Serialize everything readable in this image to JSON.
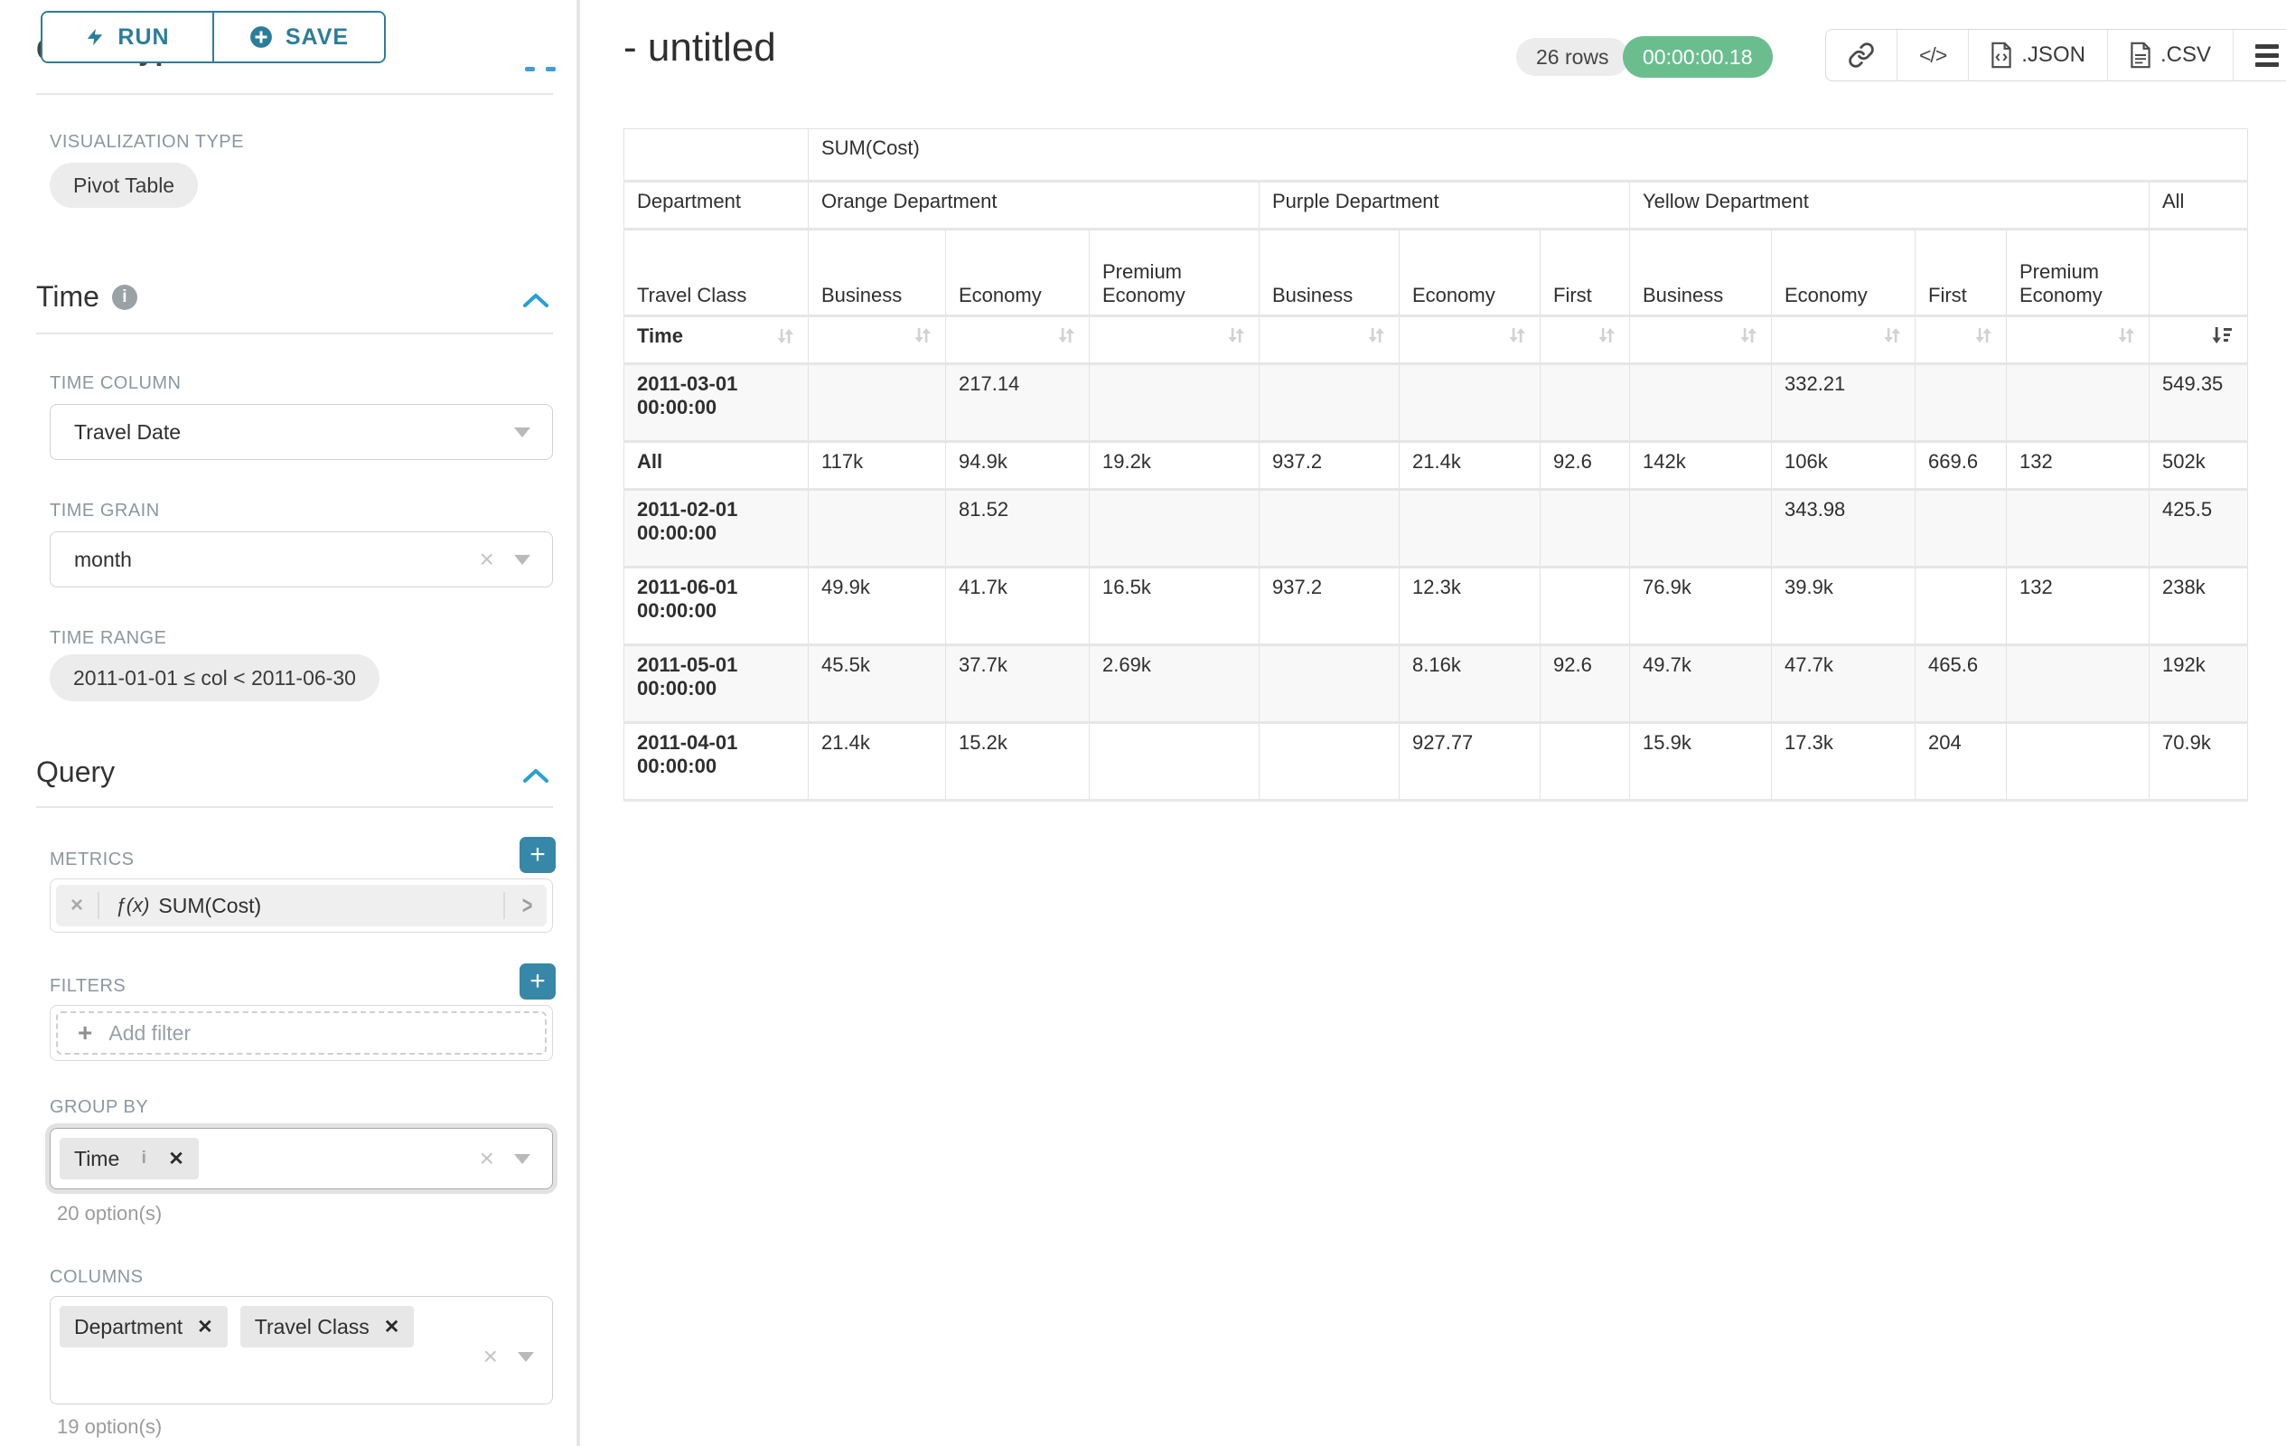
{
  "sidebar": {
    "run_label": "RUN",
    "save_label": "SAVE",
    "panel_title": "Chart Type",
    "viz": {
      "label": "VISUALIZATION TYPE",
      "value": "Pivot Table"
    },
    "time_section": {
      "title": "Time",
      "time_column_label": "TIME COLUMN",
      "time_column_value": "Travel Date",
      "time_grain_label": "TIME GRAIN",
      "time_grain_value": "month",
      "time_range_label": "TIME RANGE",
      "time_range_value": "2011-01-01 ≤ col < 2011-06-30"
    },
    "query_section": {
      "title": "Query",
      "metrics_label": "METRICS",
      "metric_fx": "ƒ(x)",
      "metric_value": "SUM(Cost)",
      "filters_label": "FILTERS",
      "add_filter_label": "Add filter",
      "group_by_label": "GROUP BY",
      "group_by_chip": "Time",
      "group_by_options": "20 option(s)",
      "columns_label": "COLUMNS",
      "columns_chips": [
        {
          "label": "Department"
        },
        {
          "label": "Travel Class"
        }
      ],
      "columns_options": "19 option(s)"
    }
  },
  "header": {
    "title": "- untitled",
    "rows_badge": "26 rows",
    "timer": "00:00:00.18",
    "json_label": ".JSON",
    "csv_label": ".CSV"
  },
  "table": {
    "metric_label": "SUM(Cost)",
    "department_label": "Department",
    "travel_class_label": "Travel Class",
    "time_label": "Time",
    "col_groups": [
      {
        "label": "Orange Department",
        "cols": [
          "Business",
          "Economy",
          "Premium Economy"
        ]
      },
      {
        "label": "Purple Department",
        "cols": [
          "Business",
          "Economy",
          "First"
        ]
      },
      {
        "label": "Yellow Department",
        "cols": [
          "Business",
          "Economy",
          "First",
          "Premium Economy"
        ]
      },
      {
        "label": "All",
        "cols": [
          ""
        ]
      }
    ],
    "rows": [
      {
        "label": "2011-03-01 00:00:00",
        "tall": true,
        "values": [
          "",
          "217.14",
          "",
          "",
          "",
          "",
          "",
          "332.21",
          "",
          "",
          "549.35"
        ]
      },
      {
        "label": "All",
        "tall": false,
        "values": [
          "117k",
          "94.9k",
          "19.2k",
          "937.2",
          "21.4k",
          "92.6",
          "142k",
          "106k",
          "669.6",
          "132",
          "502k"
        ]
      },
      {
        "label": "2011-02-01 00:00:00",
        "tall": true,
        "values": [
          "",
          "81.52",
          "",
          "",
          "",
          "",
          "",
          "343.98",
          "",
          "",
          "425.5"
        ]
      },
      {
        "label": "2011-06-01 00:00:00",
        "tall": true,
        "values": [
          "49.9k",
          "41.7k",
          "16.5k",
          "937.2",
          "12.3k",
          "",
          "76.9k",
          "39.9k",
          "",
          "132",
          "238k"
        ]
      },
      {
        "label": "2011-05-01 00:00:00",
        "tall": true,
        "values": [
          "45.5k",
          "37.7k",
          "2.69k",
          "",
          "8.16k",
          "92.6",
          "49.7k",
          "47.7k",
          "465.6",
          "",
          "192k"
        ]
      },
      {
        "label": "2011-04-01 00:00:00",
        "tall": true,
        "values": [
          "21.4k",
          "15.2k",
          "",
          "",
          "927.77",
          "",
          "15.9k",
          "17.3k",
          "204",
          "",
          "70.9k"
        ]
      }
    ]
  }
}
